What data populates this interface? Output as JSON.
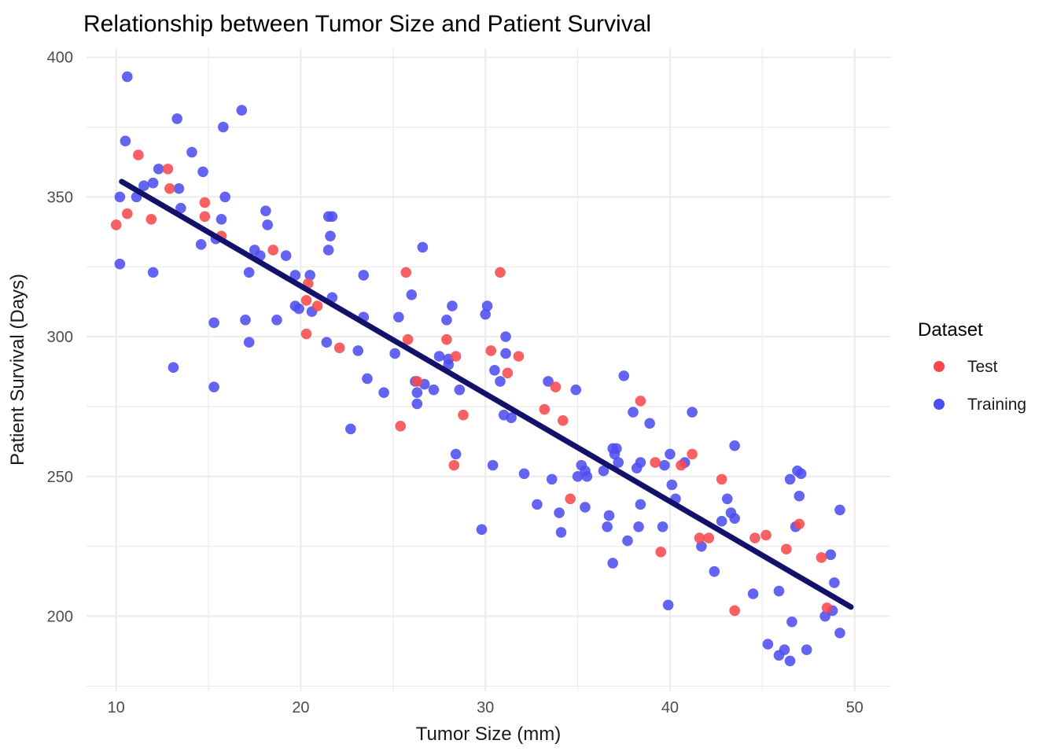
{
  "title": "Relationship between Tumor Size and Patient Survival",
  "colors": {
    "test": "#F8484D",
    "training": "#4D4DF0",
    "regression_line": "#12126B",
    "grid": "#EBEBEB",
    "tick_text": "#4D4D4D",
    "title_text": "#000000",
    "background": "#FFFFFF"
  },
  "chart_data": {
    "type": "scatter",
    "title": "Relationship between Tumor Size and Patient Survival",
    "xlabel": "Tumor Size (mm)",
    "ylabel": "Patient Survival (Days)",
    "xlim": [
      8.4,
      52.0
    ],
    "ylim": [
      172,
      403
    ],
    "x_ticks": [
      10,
      20,
      30,
      40,
      50
    ],
    "x_minor_ticks": [
      15,
      25,
      35,
      45
    ],
    "y_ticks": [
      200,
      250,
      300,
      350,
      400
    ],
    "y_minor_ticks": [
      175,
      225,
      275,
      325,
      375
    ],
    "grid": "on",
    "legend": {
      "title": "Dataset",
      "position": "right",
      "entries": [
        {
          "label": "Test",
          "color": "#F8484D"
        },
        {
          "label": "Training",
          "color": "#4D4DF0"
        }
      ]
    },
    "regression_line": {
      "color": "#12126B",
      "x1": 10.3,
      "y1": 355.5,
      "x2": 49.8,
      "y2": 203.3
    },
    "series": [
      {
        "name": "Training",
        "color": "#4D4DF0",
        "points": [
          [
            10.6,
            393
          ],
          [
            16.8,
            381
          ],
          [
            13.3,
            378
          ],
          [
            15.8,
            375
          ],
          [
            10.5,
            370
          ],
          [
            14.1,
            366
          ],
          [
            12.3,
            360
          ],
          [
            14.7,
            359
          ],
          [
            12.0,
            355
          ],
          [
            11.5,
            354
          ],
          [
            13.4,
            353
          ],
          [
            10.2,
            350
          ],
          [
            11.1,
            350
          ],
          [
            15.9,
            350
          ],
          [
            13.5,
            346
          ],
          [
            15.7,
            342
          ],
          [
            15.4,
            335
          ],
          [
            14.6,
            333
          ],
          [
            18.1,
            345
          ],
          [
            18.2,
            340
          ],
          [
            17.5,
            331
          ],
          [
            17.8,
            329
          ],
          [
            19.2,
            329
          ],
          [
            21.5,
            343
          ],
          [
            21.7,
            343
          ],
          [
            21.6,
            336
          ],
          [
            21.5,
            331
          ],
          [
            10.2,
            326
          ],
          [
            12.0,
            323
          ],
          [
            17.2,
            323
          ],
          [
            19.7,
            322
          ],
          [
            20.5,
            322
          ],
          [
            19.7,
            311
          ],
          [
            19.9,
            310
          ],
          [
            21.7,
            314
          ],
          [
            20.6,
            309
          ],
          [
            15.3,
            305
          ],
          [
            17.0,
            306
          ],
          [
            18.7,
            306
          ],
          [
            17.2,
            298
          ],
          [
            21.4,
            298
          ],
          [
            13.1,
            289
          ],
          [
            15.3,
            282
          ],
          [
            23.4,
            322
          ],
          [
            26.0,
            315
          ],
          [
            28.2,
            311
          ],
          [
            30.1,
            311
          ],
          [
            30.0,
            308
          ],
          [
            23.4,
            307
          ],
          [
            25.3,
            307
          ],
          [
            27.9,
            306
          ],
          [
            31.1,
            300
          ],
          [
            23.1,
            295
          ],
          [
            25.1,
            294
          ],
          [
            31.1,
            294
          ],
          [
            27.5,
            293
          ],
          [
            28.0,
            292
          ],
          [
            28.0,
            290
          ],
          [
            30.5,
            288
          ],
          [
            23.6,
            285
          ],
          [
            26.2,
            284
          ],
          [
            26.7,
            283
          ],
          [
            30.8,
            284
          ],
          [
            24.5,
            280
          ],
          [
            26.3,
            280
          ],
          [
            27.2,
            281
          ],
          [
            28.6,
            281
          ],
          [
            33.4,
            284
          ],
          [
            34.9,
            281
          ],
          [
            26.3,
            276
          ],
          [
            31.0,
            272
          ],
          [
            31.4,
            271
          ],
          [
            22.7,
            267
          ],
          [
            28.4,
            258
          ],
          [
            30.4,
            254
          ],
          [
            32.1,
            251
          ],
          [
            35.2,
            254
          ],
          [
            35.4,
            252
          ],
          [
            35.0,
            250
          ],
          [
            35.5,
            250
          ],
          [
            36.4,
            252
          ],
          [
            33.6,
            249
          ],
          [
            36.9,
            260
          ],
          [
            37.0,
            258
          ],
          [
            26.6,
            332
          ],
          [
            37.5,
            286
          ],
          [
            38.0,
            273
          ],
          [
            38.9,
            269
          ],
          [
            41.2,
            273
          ],
          [
            43.5,
            261
          ],
          [
            37.1,
            260
          ],
          [
            40.0,
            258
          ],
          [
            37.2,
            255
          ],
          [
            38.4,
            255
          ],
          [
            38.2,
            253
          ],
          [
            39.7,
            254
          ],
          [
            40.8,
            255
          ],
          [
            46.5,
            249
          ],
          [
            46.9,
            252
          ],
          [
            47.1,
            251
          ],
          [
            40.1,
            247
          ],
          [
            29.8,
            231
          ],
          [
            32.8,
            240
          ],
          [
            34.0,
            237
          ],
          [
            35.4,
            239
          ],
          [
            36.7,
            236
          ],
          [
            36.6,
            232
          ],
          [
            34.1,
            230
          ],
          [
            36.9,
            219
          ],
          [
            38.4,
            240
          ],
          [
            40.3,
            242
          ],
          [
            43.1,
            242
          ],
          [
            43.3,
            237
          ],
          [
            43.5,
            235
          ],
          [
            42.8,
            234
          ],
          [
            38.3,
            232
          ],
          [
            39.6,
            232
          ],
          [
            37.7,
            227
          ],
          [
            41.7,
            225
          ],
          [
            47.0,
            243
          ],
          [
            46.8,
            232
          ],
          [
            49.2,
            238
          ],
          [
            48.7,
            222
          ],
          [
            42.4,
            216
          ],
          [
            44.5,
            208
          ],
          [
            45.9,
            209
          ],
          [
            48.9,
            212
          ],
          [
            39.9,
            204
          ],
          [
            48.4,
            200
          ],
          [
            48.8,
            202
          ],
          [
            46.6,
            198
          ],
          [
            49.2,
            194
          ],
          [
            45.3,
            190
          ],
          [
            46.2,
            188
          ],
          [
            45.9,
            186
          ],
          [
            46.5,
            184
          ],
          [
            47.4,
            188
          ]
        ]
      },
      {
        "name": "Test",
        "color": "#F8484D",
        "points": [
          [
            11.2,
            365
          ],
          [
            12.8,
            360
          ],
          [
            12.9,
            353
          ],
          [
            10.6,
            344
          ],
          [
            10.0,
            340
          ],
          [
            11.9,
            342
          ],
          [
            14.8,
            348
          ],
          [
            14.8,
            343
          ],
          [
            15.7,
            336
          ],
          [
            18.5,
            331
          ],
          [
            20.4,
            319
          ],
          [
            20.3,
            313
          ],
          [
            20.9,
            311
          ],
          [
            20.3,
            301
          ],
          [
            22.1,
            296
          ],
          [
            25.7,
            323
          ],
          [
            30.8,
            323
          ],
          [
            25.8,
            299
          ],
          [
            27.9,
            299
          ],
          [
            30.3,
            295
          ],
          [
            31.8,
            293
          ],
          [
            28.4,
            293
          ],
          [
            31.2,
            287
          ],
          [
            26.3,
            284
          ],
          [
            33.8,
            282
          ],
          [
            28.8,
            272
          ],
          [
            33.2,
            274
          ],
          [
            25.4,
            268
          ],
          [
            34.2,
            270
          ],
          [
            28.3,
            254
          ],
          [
            34.6,
            242
          ],
          [
            38.4,
            277
          ],
          [
            41.2,
            258
          ],
          [
            39.2,
            255
          ],
          [
            40.6,
            254
          ],
          [
            42.8,
            249
          ],
          [
            41.6,
            228
          ],
          [
            42.1,
            228
          ],
          [
            44.6,
            228
          ],
          [
            45.2,
            229
          ],
          [
            47.0,
            233
          ],
          [
            39.5,
            223
          ],
          [
            46.3,
            224
          ],
          [
            48.2,
            221
          ],
          [
            43.5,
            202
          ],
          [
            48.5,
            203
          ]
        ]
      }
    ]
  }
}
